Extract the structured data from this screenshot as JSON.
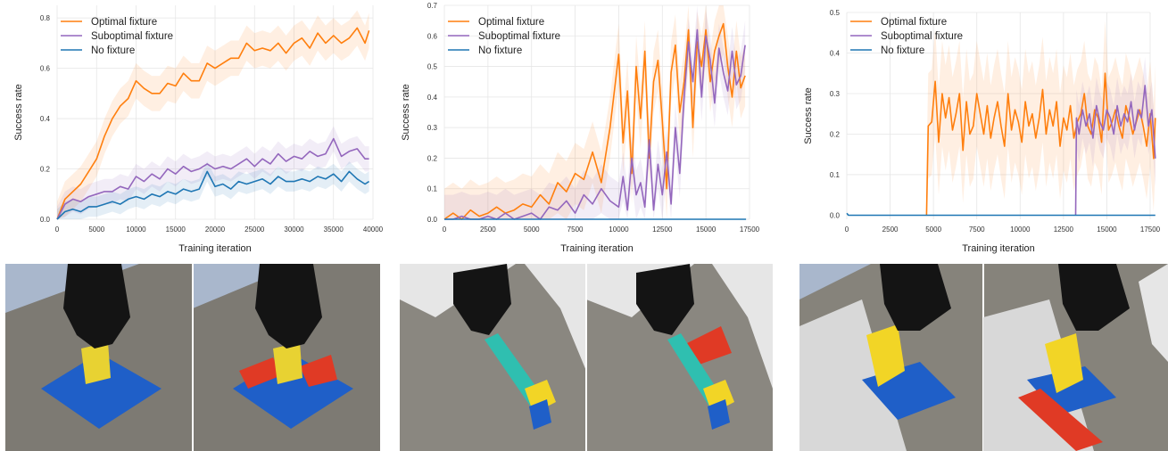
{
  "colors": {
    "optimal": "#ff7f0e",
    "suboptimal": "#9467bd",
    "none": "#1f77b4"
  },
  "chart_data": [
    {
      "type": "line",
      "xlabel": "Training iteration",
      "ylabel": "Success rate",
      "xlim": [
        0,
        40000
      ],
      "ylim": [
        0,
        0.85
      ],
      "xticks": [
        0,
        5000,
        10000,
        15000,
        20000,
        25000,
        30000,
        35000,
        40000
      ],
      "yticks": [
        0.0,
        0.2,
        0.4,
        0.6,
        0.8
      ],
      "ytick_labels": [
        "0.0",
        "0.2",
        "0.4",
        "0.6",
        "0.8"
      ],
      "legend_position": "top-left",
      "grid": true,
      "series": [
        {
          "name": "Optimal fixture",
          "color": "#ff7f0e",
          "x": [
            0,
            1000,
            2000,
            3000,
            4000,
            5000,
            6000,
            7000,
            8000,
            9000,
            10000,
            11000,
            12000,
            13000,
            14000,
            15000,
            16000,
            17000,
            18000,
            19000,
            20000,
            21000,
            22000,
            23000,
            24000,
            25000,
            26000,
            27000,
            28000,
            29000,
            30000,
            31000,
            32000,
            33000,
            34000,
            35000,
            36000,
            37000,
            38000,
            39000,
            39500
          ],
          "y": [
            0.0,
            0.08,
            0.11,
            0.14,
            0.19,
            0.24,
            0.33,
            0.4,
            0.45,
            0.48,
            0.55,
            0.52,
            0.5,
            0.5,
            0.54,
            0.53,
            0.58,
            0.55,
            0.55,
            0.62,
            0.6,
            0.62,
            0.64,
            0.64,
            0.7,
            0.67,
            0.68,
            0.67,
            0.7,
            0.66,
            0.7,
            0.72,
            0.68,
            0.74,
            0.7,
            0.73,
            0.7,
            0.72,
            0.76,
            0.7,
            0.75
          ],
          "band": 0.07
        },
        {
          "name": "Suboptimal fixture",
          "color": "#9467bd",
          "x": [
            0,
            1000,
            2000,
            3000,
            4000,
            5000,
            6000,
            7000,
            8000,
            9000,
            10000,
            11000,
            12000,
            13000,
            14000,
            15000,
            16000,
            17000,
            18000,
            19000,
            20000,
            21000,
            22000,
            23000,
            24000,
            25000,
            26000,
            27000,
            28000,
            29000,
            30000,
            31000,
            32000,
            33000,
            34000,
            35000,
            36000,
            37000,
            38000,
            39000,
            39500
          ],
          "y": [
            0.0,
            0.06,
            0.08,
            0.07,
            0.09,
            0.1,
            0.11,
            0.11,
            0.13,
            0.12,
            0.17,
            0.15,
            0.18,
            0.16,
            0.2,
            0.18,
            0.21,
            0.19,
            0.2,
            0.22,
            0.2,
            0.21,
            0.2,
            0.22,
            0.24,
            0.21,
            0.24,
            0.22,
            0.26,
            0.23,
            0.25,
            0.24,
            0.27,
            0.25,
            0.26,
            0.32,
            0.25,
            0.27,
            0.28,
            0.24,
            0.24
          ],
          "band": 0.05
        },
        {
          "name": "No fixture",
          "color": "#1f77b4",
          "x": [
            0,
            1000,
            2000,
            3000,
            4000,
            5000,
            6000,
            7000,
            8000,
            9000,
            10000,
            11000,
            12000,
            13000,
            14000,
            15000,
            16000,
            17000,
            18000,
            19000,
            20000,
            21000,
            22000,
            23000,
            24000,
            25000,
            26000,
            27000,
            28000,
            29000,
            30000,
            31000,
            32000,
            33000,
            34000,
            35000,
            36000,
            37000,
            38000,
            39000,
            39500
          ],
          "y": [
            0.0,
            0.03,
            0.04,
            0.03,
            0.05,
            0.05,
            0.06,
            0.07,
            0.06,
            0.08,
            0.09,
            0.08,
            0.1,
            0.09,
            0.11,
            0.1,
            0.12,
            0.11,
            0.12,
            0.19,
            0.13,
            0.14,
            0.12,
            0.15,
            0.14,
            0.15,
            0.16,
            0.14,
            0.17,
            0.15,
            0.15,
            0.16,
            0.15,
            0.17,
            0.16,
            0.18,
            0.15,
            0.19,
            0.16,
            0.14,
            0.15
          ],
          "band": 0.04
        }
      ]
    },
    {
      "type": "line",
      "xlabel": "Training iteration",
      "ylabel": "Success rate",
      "xlim": [
        0,
        17500
      ],
      "ylim": [
        0,
        0.7
      ],
      "xticks": [
        0,
        2500,
        5000,
        7500,
        10000,
        12500,
        15000,
        17500
      ],
      "yticks": [
        0.0,
        0.1,
        0.2,
        0.3,
        0.4,
        0.5,
        0.6,
        0.7
      ],
      "ytick_labels": [
        "0.0",
        "0.1",
        "0.2",
        "0.3",
        "0.4",
        "0.5",
        "0.6",
        "0.7"
      ],
      "legend_position": "top-left",
      "grid": true,
      "series": [
        {
          "name": "Optimal fixture",
          "color": "#ff7f0e",
          "x": [
            0,
            500,
            1000,
            1500,
            2000,
            2500,
            3000,
            3500,
            4000,
            4500,
            5000,
            5500,
            6000,
            6500,
            7000,
            7500,
            8000,
            8500,
            9000,
            9500,
            10000,
            10250,
            10500,
            10750,
            11000,
            11250,
            11500,
            11750,
            12000,
            12250,
            12500,
            12750,
            13000,
            13250,
            13500,
            13750,
            14000,
            14250,
            14500,
            14750,
            15000,
            15250,
            15500,
            15750,
            16000,
            16250,
            16500,
            16750,
            17000,
            17250
          ],
          "y": [
            0.0,
            0.02,
            0.0,
            0.03,
            0.01,
            0.02,
            0.04,
            0.02,
            0.03,
            0.05,
            0.04,
            0.08,
            0.05,
            0.12,
            0.09,
            0.15,
            0.13,
            0.22,
            0.12,
            0.3,
            0.54,
            0.25,
            0.42,
            0.15,
            0.5,
            0.33,
            0.55,
            0.2,
            0.45,
            0.52,
            0.32,
            0.1,
            0.48,
            0.57,
            0.35,
            0.45,
            0.62,
            0.3,
            0.58,
            0.5,
            0.62,
            0.45,
            0.55,
            0.6,
            0.64,
            0.5,
            0.4,
            0.55,
            0.43,
            0.47
          ],
          "band": 0.1
        },
        {
          "name": "Suboptimal fixture",
          "color": "#9467bd",
          "x": [
            0,
            500,
            1000,
            1500,
            2000,
            2500,
            3000,
            3500,
            4000,
            4500,
            5000,
            5500,
            6000,
            6500,
            7000,
            7500,
            8000,
            8500,
            9000,
            9500,
            10000,
            10250,
            10500,
            10750,
            11000,
            11250,
            11500,
            11750,
            12000,
            12250,
            12500,
            12750,
            13000,
            13250,
            13500,
            13750,
            14000,
            14250,
            14500,
            14750,
            15000,
            15250,
            15500,
            15750,
            16000,
            16250,
            16500,
            16750,
            17000,
            17250
          ],
          "y": [
            0.0,
            0.0,
            0.01,
            0.0,
            0.0,
            0.01,
            0.0,
            0.02,
            0.0,
            0.01,
            0.02,
            0.0,
            0.04,
            0.03,
            0.06,
            0.02,
            0.08,
            0.05,
            0.1,
            0.06,
            0.04,
            0.14,
            0.03,
            0.2,
            0.08,
            0.12,
            0.04,
            0.26,
            0.03,
            0.18,
            0.08,
            0.22,
            0.05,
            0.3,
            0.15,
            0.4,
            0.58,
            0.45,
            0.62,
            0.4,
            0.6,
            0.52,
            0.38,
            0.56,
            0.48,
            0.42,
            0.55,
            0.44,
            0.47,
            0.57
          ],
          "band": 0.08
        },
        {
          "name": "No fixture",
          "color": "#1f77b4",
          "x": [
            0,
            17300
          ],
          "y": [
            0.0,
            0.0
          ],
          "band": 0
        }
      ]
    },
    {
      "type": "line",
      "xlabel": "Training iteration",
      "ylabel": "Success rate",
      "xlim": [
        0,
        17500
      ],
      "ylim": [
        -0.01,
        0.5
      ],
      "xticks": [
        0,
        2500,
        5000,
        7500,
        10000,
        12500,
        15000,
        17500
      ],
      "yticks": [
        0.0,
        0.1,
        0.2,
        0.3,
        0.4,
        0.5
      ],
      "ytick_labels": [
        "0.0",
        "0.1",
        "0.2",
        "0.3",
        "0.4",
        "0.5"
      ],
      "legend_position": "top-left",
      "grid": true,
      "series": [
        {
          "name": "Optimal fixture",
          "color": "#ff7f0e",
          "x": [
            4600,
            4700,
            4900,
            5100,
            5300,
            5500,
            5700,
            5900,
            6100,
            6300,
            6500,
            6700,
            6900,
            7100,
            7300,
            7500,
            7700,
            7900,
            8100,
            8300,
            8500,
            8700,
            8900,
            9100,
            9300,
            9500,
            9700,
            9900,
            10100,
            10300,
            10500,
            10700,
            10900,
            11100,
            11300,
            11500,
            11700,
            11900,
            12100,
            12300,
            12500,
            12700,
            12900,
            13100,
            13300,
            13500,
            13700,
            13900,
            14100,
            14300,
            14500,
            14700,
            14900,
            15100,
            15300,
            15500,
            15700,
            15900,
            16100,
            16300,
            16500,
            16700,
            16900,
            17100,
            17300,
            17500,
            17700,
            17800
          ],
          "y": [
            0.0,
            0.22,
            0.23,
            0.33,
            0.18,
            0.3,
            0.24,
            0.29,
            0.21,
            0.25,
            0.3,
            0.16,
            0.28,
            0.2,
            0.22,
            0.3,
            0.25,
            0.2,
            0.27,
            0.19,
            0.24,
            0.28,
            0.22,
            0.17,
            0.3,
            0.21,
            0.26,
            0.23,
            0.18,
            0.28,
            0.22,
            0.25,
            0.19,
            0.24,
            0.31,
            0.2,
            0.26,
            0.22,
            0.28,
            0.17,
            0.24,
            0.21,
            0.27,
            0.19,
            0.23,
            0.25,
            0.3,
            0.22,
            0.2,
            0.26,
            0.24,
            0.18,
            0.35,
            0.21,
            0.23,
            0.26,
            0.22,
            0.19,
            0.27,
            0.24,
            0.2,
            0.23,
            0.26,
            0.22,
            0.17,
            0.25,
            0.14,
            0.24
          ],
          "band": 0.13
        },
        {
          "name": "Suboptimal fixture",
          "color": "#9467bd",
          "x": [
            13200,
            13250,
            13400,
            13600,
            13800,
            14000,
            14200,
            14400,
            14600,
            14800,
            15000,
            15200,
            15400,
            15600,
            15800,
            16000,
            16200,
            16400,
            16600,
            16800,
            17000,
            17200,
            17400,
            17600,
            17800
          ],
          "y": [
            0.0,
            0.24,
            0.2,
            0.26,
            0.22,
            0.25,
            0.19,
            0.27,
            0.23,
            0.21,
            0.26,
            0.24,
            0.2,
            0.27,
            0.22,
            0.25,
            0.23,
            0.28,
            0.21,
            0.26,
            0.24,
            0.32,
            0.22,
            0.26,
            0.14
          ],
          "band": 0.07
        },
        {
          "name": "No fixture",
          "color": "#1f77b4",
          "x": [
            0,
            100,
            300,
            17800
          ],
          "y": [
            0.005,
            0.0,
            0.0,
            0.0
          ],
          "band": 0
        }
      ]
    }
  ]
}
